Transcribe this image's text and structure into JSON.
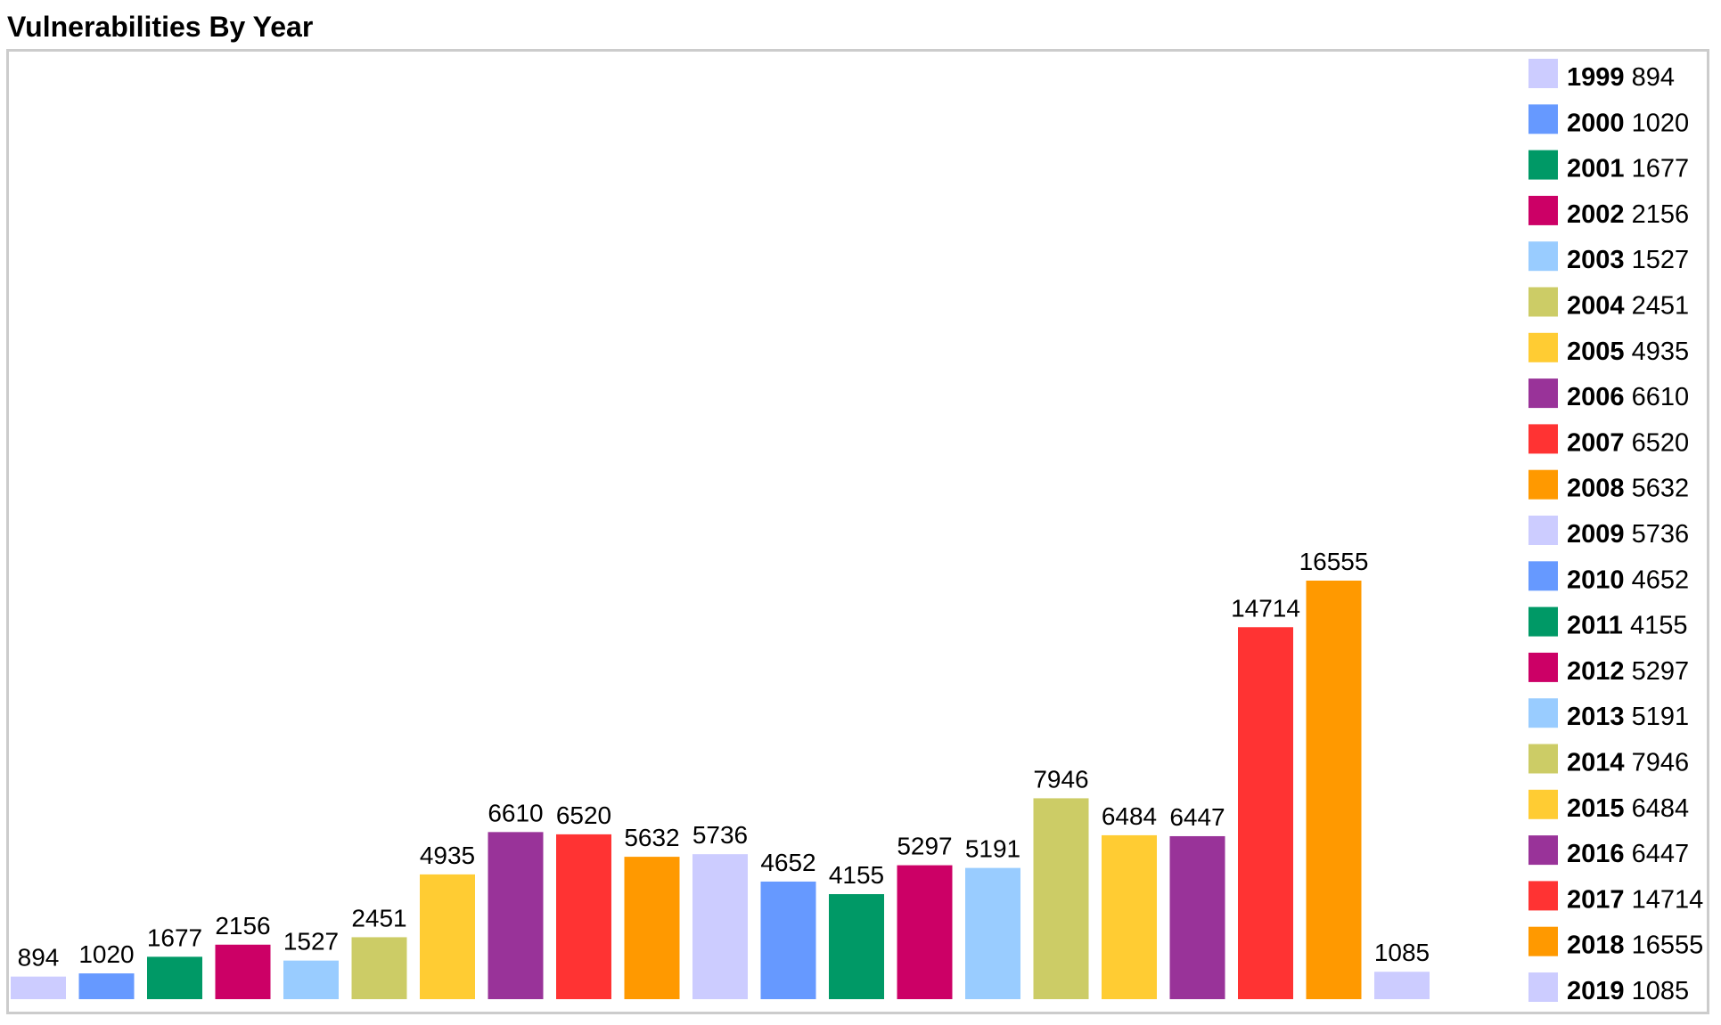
{
  "chart_data": {
    "type": "bar",
    "title": "Vulnerabilities By Year",
    "xlabel": "",
    "ylabel": "",
    "categories": [
      "1999",
      "2000",
      "2001",
      "2002",
      "2003",
      "2004",
      "2005",
      "2006",
      "2007",
      "2008",
      "2009",
      "2010",
      "2011",
      "2012",
      "2013",
      "2014",
      "2015",
      "2016",
      "2017",
      "2018",
      "2019"
    ],
    "values": [
      894,
      1020,
      1677,
      2156,
      1527,
      2451,
      4935,
      6610,
      6520,
      5632,
      5736,
      4652,
      4155,
      5297,
      5191,
      7946,
      6484,
      6447,
      14714,
      16555,
      1085
    ],
    "colors": [
      "#ccccff",
      "#6699ff",
      "#009966",
      "#cc0066",
      "#99ccff",
      "#cccc66",
      "#ffcc33",
      "#993399",
      "#ff3333",
      "#ff9900",
      "#ccccff",
      "#6699ff",
      "#009966",
      "#cc0066",
      "#99ccff",
      "#cccc66",
      "#ffcc33",
      "#993399",
      "#ff3333",
      "#ff9900",
      "#ccccff"
    ],
    "ylim": [
      0,
      16555
    ],
    "grid": false,
    "legend_position": "right"
  }
}
